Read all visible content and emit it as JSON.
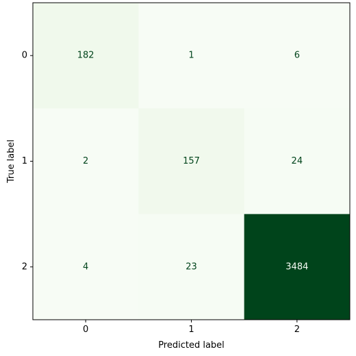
{
  "chart_data": {
    "type": "heatmap",
    "title": "",
    "xlabel": "Predicted label",
    "ylabel": "True label",
    "x_categories": [
      "0",
      "1",
      "2"
    ],
    "y_categories": [
      "0",
      "1",
      "2"
    ],
    "values": [
      [
        182,
        1,
        6
      ],
      [
        2,
        157,
        24
      ],
      [
        4,
        23,
        3484
      ]
    ],
    "colormap": "Greens",
    "colors": {
      "low": "#f7fcf5",
      "high": "#00441b",
      "text_dark": "#00441b",
      "text_light": "#f7fcf5"
    },
    "grid": false,
    "colorbar": false
  }
}
